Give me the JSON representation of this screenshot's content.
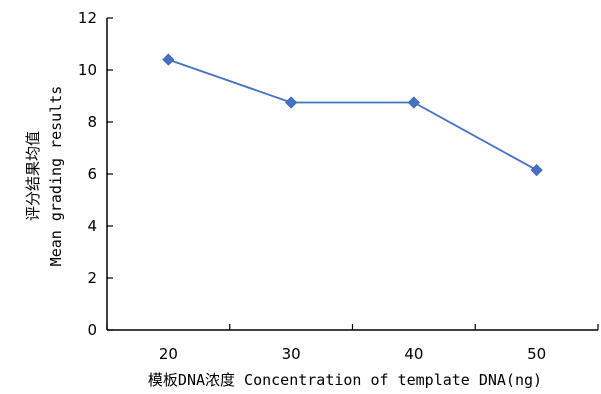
{
  "chart_data": {
    "type": "line",
    "title": "",
    "xlabel": "模板DNA浓度 Concentration of template DNA(ng)",
    "ylabel_cn": "评分结果均值",
    "ylabel_en": "Mean grading results",
    "x": [
      20,
      30,
      40,
      50
    ],
    "series": [
      {
        "values": [
          10.4,
          8.75,
          8.75,
          6.15
        ],
        "color": "#4472c4",
        "marker": "diamond"
      }
    ],
    "ylim": [
      0,
      12
    ],
    "yticks": [
      0,
      2,
      4,
      6,
      8,
      10,
      12
    ],
    "grid": false,
    "legend": "none"
  }
}
